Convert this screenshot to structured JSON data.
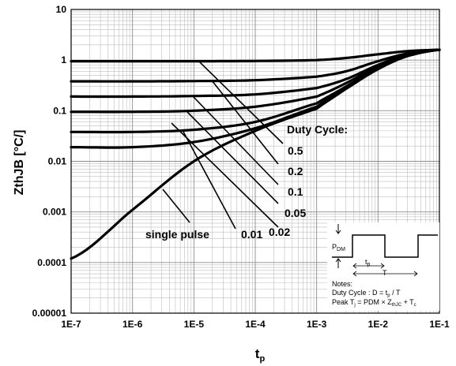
{
  "chart_data": {
    "type": "line",
    "xlabel": "t",
    "xlabel_sub": "p",
    "ylabel": "ZthJB [°C/]",
    "xscale": "log",
    "yscale": "log",
    "xlim": [
      1e-07,
      0.1
    ],
    "ylim": [
      1e-05,
      10
    ],
    "grid": true,
    "x_tick_labels": [
      "1E-7",
      "1E-6",
      "1E-5",
      "1E-4",
      "1E-3",
      "1E-2",
      "1E-1"
    ],
    "y_tick_labels": [
      "0.00001",
      "0.0001",
      "0.001",
      "0.01",
      "0.1",
      "1",
      "10"
    ],
    "legend_title": "Duty Cycle:",
    "series": [
      {
        "name": "0.5",
        "x": [
          1e-07,
          1e-06,
          1e-05,
          0.0001,
          0.001,
          0.003,
          0.01,
          0.03,
          0.1
        ],
        "y": [
          0.95,
          0.95,
          0.95,
          0.96,
          1.0,
          1.1,
          1.3,
          1.5,
          1.6
        ]
      },
      {
        "name": "0.2",
        "x": [
          1e-07,
          1e-06,
          1e-05,
          0.0001,
          0.001,
          0.003,
          0.01,
          0.03,
          0.1
        ],
        "y": [
          0.38,
          0.38,
          0.385,
          0.4,
          0.47,
          0.6,
          0.95,
          1.35,
          1.6
        ]
      },
      {
        "name": "0.1",
        "x": [
          1e-07,
          1e-06,
          1e-05,
          0.0001,
          0.001,
          0.003,
          0.01,
          0.03,
          0.1
        ],
        "y": [
          0.19,
          0.19,
          0.195,
          0.21,
          0.28,
          0.42,
          0.8,
          1.3,
          1.6
        ]
      },
      {
        "name": "0.05",
        "x": [
          1e-07,
          1e-06,
          1e-05,
          0.0001,
          0.001,
          0.003,
          0.01,
          0.03,
          0.1
        ],
        "y": [
          0.095,
          0.095,
          0.1,
          0.12,
          0.19,
          0.35,
          0.75,
          1.25,
          1.6
        ]
      },
      {
        "name": "0.02",
        "x": [
          1e-07,
          1e-06,
          1e-05,
          0.0001,
          0.001,
          0.003,
          0.01,
          0.03,
          0.1
        ],
        "y": [
          0.038,
          0.038,
          0.042,
          0.06,
          0.14,
          0.3,
          0.7,
          1.2,
          1.6
        ]
      },
      {
        "name": "0.01",
        "x": [
          1e-07,
          1e-06,
          1e-05,
          0.0001,
          0.001,
          0.003,
          0.01,
          0.03,
          0.1
        ],
        "y": [
          0.019,
          0.019,
          0.024,
          0.045,
          0.12,
          0.28,
          0.68,
          1.2,
          1.6
        ]
      },
      {
        "name": "single pulse",
        "x": [
          1e-07,
          1e-06,
          1e-05,
          0.0001,
          0.001,
          0.003,
          0.01,
          0.03,
          0.1
        ],
        "y": [
          0.00012,
          0.0011,
          0.01,
          0.04,
          0.11,
          0.27,
          0.66,
          1.2,
          1.6
        ]
      }
    ],
    "notes_inset": {
      "pdm": "P",
      "pdm_sub": "DM",
      "tp": "t",
      "tp_sub": "p",
      "period": "T",
      "notes_title": "Notes:",
      "duty_line": "Duty Cycle : D = t",
      "duty_sub": "p",
      "duty_end": " / T",
      "peak_line": "Peak T",
      "peak_sub": "j",
      "peak_mid": " = PDM × Z",
      "peak_sub2": "thJC",
      "peak_end": " + T",
      "peak_sub3": "c"
    }
  }
}
